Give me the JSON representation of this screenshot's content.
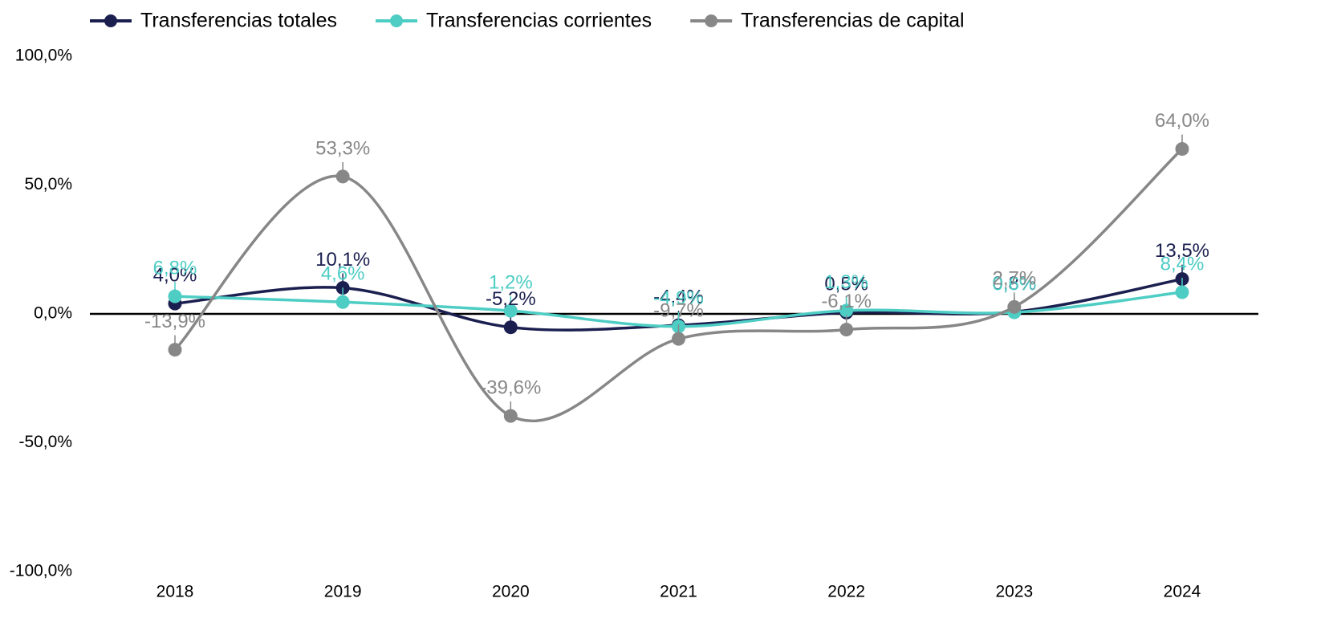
{
  "chart_data": {
    "type": "line",
    "categories": [
      "2018",
      "2019",
      "2020",
      "2021",
      "2022",
      "2023",
      "2024"
    ],
    "series": [
      {
        "name": "Transferencias totales",
        "color": "#1b1f4f",
        "values": [
          4.0,
          10.1,
          -5.2,
          -4.4,
          0.5,
          0.8,
          13.5
        ],
        "value_labels": [
          "4,0%",
          "10,1%",
          "-5,2%",
          "-4,4%",
          "0,5%",
          "0,8%",
          "13,5%"
        ]
      },
      {
        "name": "Transferencias corrientes",
        "color": "#4ecdc4",
        "values": [
          6.8,
          4.6,
          1.2,
          -4.9,
          1.3,
          0.6,
          8.4
        ],
        "value_labels": [
          "6,8%",
          "4,6%",
          "1,2%",
          "-4,9%",
          "1,3%",
          "0,6%",
          "8,4%"
        ]
      },
      {
        "name": "Transferencias de capital",
        "color": "#878787",
        "values": [
          -13.9,
          53.3,
          -39.6,
          -9.7,
          -6.1,
          2.7,
          64.0
        ],
        "value_labels": [
          "-13,9%",
          "53,3%",
          "-39,6%",
          "-9,7%",
          "-6,1%",
          "2,7%",
          "64,0%"
        ]
      }
    ],
    "ylim": [
      -100,
      100
    ],
    "yticks": [
      {
        "value": -100,
        "label": "-100,0%"
      },
      {
        "value": -50,
        "label": "-50,0%"
      },
      {
        "value": 0,
        "label": "0,0%"
      },
      {
        "value": 50,
        "label": "50,0%"
      },
      {
        "value": 100,
        "label": "100,0%"
      }
    ],
    "legend": "top-left",
    "smooth": true
  }
}
